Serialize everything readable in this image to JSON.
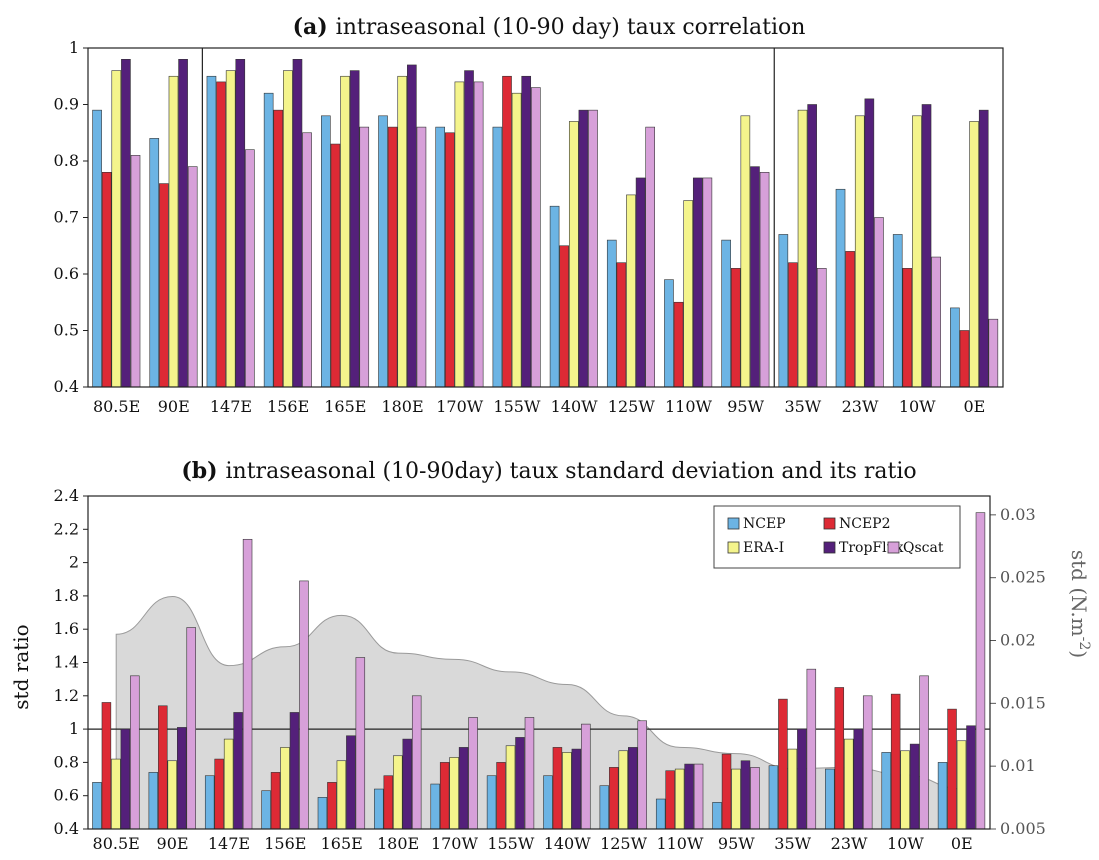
{
  "colors": {
    "NCEP": "#6cb4e4",
    "NCEP2": "#dd2a35",
    "ERA-I": "#f4f48c",
    "TropFlux": "#54207a",
    "Qscat": "#d7a0d9",
    "std_area": "#d9d9d9",
    "std_area_stroke": "#9a9a9a"
  },
  "chart_data": [
    {
      "type": "bar",
      "panel_tag": "(a)",
      "title": "intraseasonal (10-90 day) taux correlation",
      "categories": [
        "80.5E",
        "90E",
        "147E",
        "156E",
        "165E",
        "180E",
        "170W",
        "155W",
        "140W",
        "125W",
        "110W",
        "95W",
        "35W",
        "23W",
        "10W",
        "0E"
      ],
      "series": [
        {
          "name": "NCEP",
          "values": [
            0.89,
            0.84,
            0.95,
            0.92,
            0.88,
            0.88,
            0.86,
            0.86,
            0.72,
            0.66,
            0.59,
            0.66,
            0.67,
            0.75,
            0.67,
            0.54
          ]
        },
        {
          "name": "NCEP2",
          "values": [
            0.78,
            0.76,
            0.94,
            0.89,
            0.83,
            0.86,
            0.85,
            0.95,
            0.65,
            0.62,
            0.55,
            0.61,
            0.62,
            0.64,
            0.61,
            0.5
          ]
        },
        {
          "name": "ERA-I",
          "values": [
            0.96,
            0.95,
            0.96,
            0.96,
            0.95,
            0.95,
            0.94,
            0.92,
            0.87,
            0.74,
            0.73,
            0.88,
            0.89,
            0.88,
            0.88,
            0.87
          ]
        },
        {
          "name": "TropFlux",
          "values": [
            0.98,
            0.98,
            0.98,
            0.98,
            0.96,
            0.97,
            0.96,
            0.95,
            0.89,
            0.77,
            0.77,
            0.79,
            0.9,
            0.91,
            0.9,
            0.89
          ]
        },
        {
          "name": "Qscat",
          "values": [
            0.81,
            0.79,
            0.82,
            0.85,
            0.86,
            0.86,
            0.94,
            0.93,
            0.89,
            0.86,
            0.77,
            0.78,
            0.61,
            0.7,
            0.63,
            0.52
          ]
        }
      ],
      "ylim": [
        0.4,
        1.0
      ],
      "yticks": [
        "0.4",
        "0.5",
        "0.6",
        "0.7",
        "0.8",
        "0.9",
        "1"
      ],
      "separators_after": [
        "90E",
        "95W"
      ],
      "legend": "none"
    },
    {
      "type": "bar",
      "panel_tag": "(b)",
      "title": "intraseasonal (10-90day) taux standard deviation and its ratio",
      "ylabel": "std ratio",
      "y2label": "std (N.m",
      "y2label_sup": "-2",
      "y2label_end": ")",
      "categories": [
        "80.5E",
        "90E",
        "147E",
        "156E",
        "165E",
        "180E",
        "170W",
        "155W",
        "140W",
        "125W",
        "110W",
        "95W",
        "35W",
        "23W",
        "10W",
        "0E"
      ],
      "series": [
        {
          "name": "NCEP",
          "values": [
            0.68,
            0.74,
            0.72,
            0.63,
            0.59,
            0.64,
            0.67,
            0.72,
            0.72,
            0.66,
            0.58,
            0.56,
            0.78,
            0.76,
            0.86,
            0.8
          ]
        },
        {
          "name": "NCEP2",
          "values": [
            1.16,
            1.14,
            0.82,
            0.74,
            0.68,
            0.72,
            0.8,
            0.8,
            0.89,
            0.77,
            0.75,
            0.85,
            1.18,
            1.25,
            1.21,
            1.12
          ]
        },
        {
          "name": "ERA-I",
          "values": [
            0.82,
            0.81,
            0.94,
            0.89,
            0.81,
            0.84,
            0.83,
            0.9,
            0.86,
            0.87,
            0.76,
            0.76,
            0.88,
            0.94,
            0.87,
            0.93
          ]
        },
        {
          "name": "TropFlux",
          "values": [
            1.0,
            1.01,
            1.1,
            1.1,
            0.96,
            0.94,
            0.89,
            0.95,
            0.88,
            0.89,
            0.79,
            0.81,
            1.0,
            1.0,
            0.91,
            1.02
          ]
        },
        {
          "name": "Qscat",
          "values": [
            1.32,
            1.61,
            2.14,
            1.89,
            1.43,
            1.2,
            1.07,
            1.07,
            1.03,
            1.05,
            0.79,
            0.77,
            1.36,
            1.2,
            1.32,
            2.3
          ]
        }
      ],
      "ylim": [
        0.4,
        2.4
      ],
      "yticks": [
        "0.4",
        "0.6",
        "0.8",
        "1",
        "1.2",
        "1.4",
        "1.6",
        "1.8",
        "2",
        "2.2",
        "2.4"
      ],
      "y2lim": [
        0.005,
        0.0315
      ],
      "y2ticks": [
        "0.005",
        "0.01",
        "0.015",
        "0.02",
        "0.025",
        "0.03"
      ],
      "reference_line": 1.0,
      "std_area": {
        "x": [
          "80.5E",
          "90E",
          "147E",
          "156E",
          "165E",
          "180E",
          "170W",
          "155W",
          "140W",
          "125W",
          "110W",
          "95W",
          "35W",
          "23W",
          "10W",
          "0E"
        ],
        "values": [
          0.0205,
          0.0235,
          0.018,
          0.0195,
          0.022,
          0.019,
          0.0185,
          0.0175,
          0.0165,
          0.014,
          0.0115,
          0.011,
          0.0098,
          0.0099,
          0.0093,
          0.0082
        ]
      },
      "legend": "top-right"
    }
  ]
}
